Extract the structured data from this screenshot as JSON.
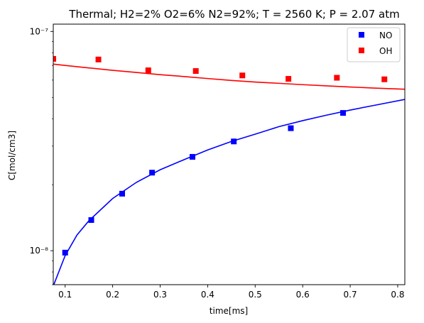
{
  "chart_data": {
    "type": "scatter",
    "title": "Thermal; H2=2% O2=6% N2=92%; T = 2560 K; P = 2.07 atm",
    "xlabel": "time[ms]",
    "ylabel": "C[mol/cm3]",
    "xlim": [
      0.075,
      0.815
    ],
    "ylim": [
      7e-09,
      1.08e-07
    ],
    "yscale": "log",
    "grid": false,
    "legend_position": "top-right",
    "x_ticks": [
      0.1,
      0.2,
      0.3,
      0.4,
      0.5,
      0.6,
      0.7,
      0.8
    ],
    "x_tick_labels": [
      "0.1",
      "0.2",
      "0.3",
      "0.4",
      "0.5",
      "0.6",
      "0.7",
      "0.8"
    ],
    "y_major_ticks": [
      1e-08,
      1e-07
    ],
    "y_tick_labels": [
      "10⁻⁸",
      "10⁻⁷"
    ],
    "series": [
      {
        "name": "NO",
        "marker": "square",
        "color": "#0000ff",
        "points": [
          {
            "x": 0.1,
            "y": 9.8e-09
          },
          {
            "x": 0.155,
            "y": 1.38e-08
          },
          {
            "x": 0.22,
            "y": 1.82e-08
          },
          {
            "x": 0.283,
            "y": 2.27e-08
          },
          {
            "x": 0.368,
            "y": 2.68e-08
          },
          {
            "x": 0.455,
            "y": 3.15e-08
          },
          {
            "x": 0.575,
            "y": 3.62e-08
          },
          {
            "x": 0.685,
            "y": 4.25e-08
          }
        ]
      },
      {
        "name": "OH",
        "marker": "square",
        "color": "#ff0000",
        "points": [
          {
            "x": 0.075,
            "y": 7.5e-08
          },
          {
            "x": 0.17,
            "y": 7.45e-08
          },
          {
            "x": 0.275,
            "y": 6.65e-08
          },
          {
            "x": 0.375,
            "y": 6.6e-08
          },
          {
            "x": 0.473,
            "y": 6.3e-08
          },
          {
            "x": 0.57,
            "y": 6.08e-08
          },
          {
            "x": 0.672,
            "y": 6.15e-08
          },
          {
            "x": 0.772,
            "y": 6.05e-08
          }
        ]
      }
    ],
    "lines": [
      {
        "color": "#0000ff",
        "points": [
          {
            "x": 0.075,
            "y": 6.9e-09
          },
          {
            "x": 0.1,
            "y": 9.5e-09
          },
          {
            "x": 0.125,
            "y": 1.18e-08
          },
          {
            "x": 0.15,
            "y": 1.37e-08
          },
          {
            "x": 0.2,
            "y": 1.73e-08
          },
          {
            "x": 0.25,
            "y": 2.05e-08
          },
          {
            "x": 0.3,
            "y": 2.34e-08
          },
          {
            "x": 0.35,
            "y": 2.6e-08
          },
          {
            "x": 0.4,
            "y": 2.88e-08
          },
          {
            "x": 0.45,
            "y": 3.15e-08
          },
          {
            "x": 0.5,
            "y": 3.4e-08
          },
          {
            "x": 0.55,
            "y": 3.68e-08
          },
          {
            "x": 0.6,
            "y": 3.92e-08
          },
          {
            "x": 0.65,
            "y": 4.15e-08
          },
          {
            "x": 0.7,
            "y": 4.38e-08
          },
          {
            "x": 0.75,
            "y": 4.6e-08
          },
          {
            "x": 0.815,
            "y": 4.9e-08
          }
        ]
      },
      {
        "color": "#ff0000",
        "points": [
          {
            "x": 0.075,
            "y": 7.1e-08
          },
          {
            "x": 0.1,
            "y": 7e-08
          },
          {
            "x": 0.15,
            "y": 6.82e-08
          },
          {
            "x": 0.2,
            "y": 6.65e-08
          },
          {
            "x": 0.25,
            "y": 6.5e-08
          },
          {
            "x": 0.3,
            "y": 6.35e-08
          },
          {
            "x": 0.35,
            "y": 6.23e-08
          },
          {
            "x": 0.4,
            "y": 6.1e-08
          },
          {
            "x": 0.45,
            "y": 5.98e-08
          },
          {
            "x": 0.5,
            "y": 5.88e-08
          },
          {
            "x": 0.55,
            "y": 5.8e-08
          },
          {
            "x": 0.6,
            "y": 5.72e-08
          },
          {
            "x": 0.65,
            "y": 5.65e-08
          },
          {
            "x": 0.7,
            "y": 5.58e-08
          },
          {
            "x": 0.75,
            "y": 5.52e-08
          },
          {
            "x": 0.815,
            "y": 5.45e-08
          }
        ]
      }
    ]
  }
}
